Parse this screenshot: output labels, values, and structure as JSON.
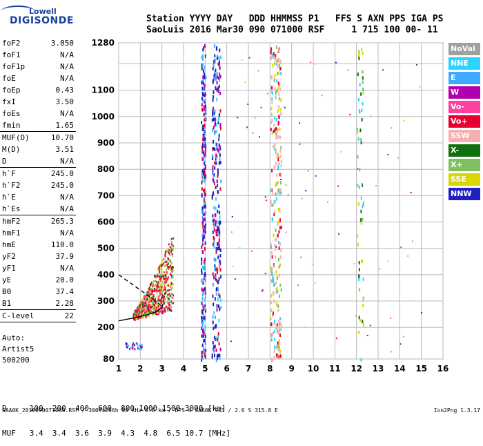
{
  "logo": {
    "line1": "Lowell",
    "line2": "DIGISONDE"
  },
  "header": {
    "row1": "Station YYYY DAY   DDD HHMMSS P1   FFS S AXN PPS IGA PS",
    "row2": "SaoLuis 2016 Mar30 090 071000 RSF     1 715 100 00- 11"
  },
  "params": [
    {
      "name": "foF2",
      "value": "3.050"
    },
    {
      "name": "foF1",
      "value": "N/A"
    },
    {
      "name": "foF1p",
      "value": "N/A"
    },
    {
      "name": "foE",
      "value": "N/A"
    },
    {
      "name": "foEp",
      "value": "0.43"
    },
    {
      "name": "fxI",
      "value": "3.50"
    },
    {
      "name": "foEs",
      "value": "N/A"
    },
    {
      "name": "fmin",
      "value": "1.65"
    },
    {
      "sep": true
    },
    {
      "name": "MUF(D)",
      "value": "10.70"
    },
    {
      "name": "M(D)",
      "value": "3.51"
    },
    {
      "name": "D",
      "value": "N/A"
    },
    {
      "sep": true
    },
    {
      "name": "h`F",
      "value": "245.0"
    },
    {
      "name": "h`F2",
      "value": "245.0"
    },
    {
      "name": "h`E",
      "value": "N/A"
    },
    {
      "name": "h`Es",
      "value": "N/A"
    },
    {
      "sep": true
    },
    {
      "name": "hmF2",
      "value": "265.3"
    },
    {
      "name": "hmF1",
      "value": "N/A"
    },
    {
      "name": "hmE",
      "value": "110.0"
    },
    {
      "name": "yF2",
      "value": "37.9"
    },
    {
      "name": "yF1",
      "value": "N/A"
    },
    {
      "name": "yE",
      "value": "20.0"
    },
    {
      "name": "B0",
      "value": "37.4"
    },
    {
      "name": "B1",
      "value": "2.28"
    },
    {
      "sep": true
    },
    {
      "name": "C-level",
      "value": "22"
    },
    {
      "sep": true
    }
  ],
  "auto": {
    "l1": "Auto:",
    "l2": "Artist5",
    "l3": "500200"
  },
  "bottom": {
    "d_row": "D     100  200  400  600  800 1000 1500 3000 [km]",
    "muf_row": "MUF   3.4  3.4  3.6  3.9  4.3  4.8  6.5 10.7 [MHz]"
  },
  "footer": {
    "left": "SAA0K_2016090071000.RSF / 300fx256h 50 kHz 5.0 km / DPS-4 SAA0K 903 / 2.6 S 315.8 E",
    "right": "Ion2Png 1.3.17"
  },
  "legend": [
    {
      "label": "NoVal",
      "color": "#a0a0a0"
    },
    {
      "label": "NNE",
      "color": "#2ad4ff"
    },
    {
      "label": "E",
      "color": "#40a8ff"
    },
    {
      "label": "W",
      "color": "#b000b0"
    },
    {
      "label": "Vo-",
      "color": "#ff40a0"
    },
    {
      "label": "Vo+",
      "color": "#e80030"
    },
    {
      "label": "SSW",
      "color": "#f4b0b0"
    },
    {
      "label": "X-",
      "color": "#107010"
    },
    {
      "label": "X+",
      "color": "#80c060"
    },
    {
      "label": "SSE",
      "color": "#d8d800"
    },
    {
      "label": "NNW",
      "color": "#2020c0"
    }
  ],
  "chart_data": {
    "type": "scatter",
    "xlabel": "",
    "ylabel": "",
    "xlim": [
      1,
      16
    ],
    "ylim": [
      80,
      1280
    ],
    "x_ticks": [
      "1",
      "2",
      "3",
      "4",
      "5",
      "6",
      "7",
      "8",
      "9",
      "10",
      "11",
      "12",
      "13",
      "14",
      "15",
      "16"
    ],
    "y_ticks": [
      "80",
      "200",
      "300",
      "400",
      "500",
      "600",
      "700",
      "800",
      "900",
      "1000",
      "1100",
      "1280"
    ],
    "grid": true,
    "traces": [
      {
        "name": "F2-trace-profile",
        "points": [
          [
            1.0,
            225
          ],
          [
            1.65,
            235
          ],
          [
            2.2,
            245
          ],
          [
            2.7,
            258
          ],
          [
            3.0,
            275
          ],
          [
            3.05,
            290
          ]
        ]
      },
      {
        "name": "profile-dashed",
        "points": [
          [
            1.0,
            400
          ],
          [
            1.6,
            365
          ],
          [
            2.2,
            330
          ],
          [
            2.7,
            300
          ],
          [
            3.0,
            280
          ]
        ]
      }
    ],
    "echo_bands": [
      {
        "x": [
          4.8,
          5.0
        ],
        "y": [
          80,
          1280
        ]
      },
      {
        "x": [
          5.3,
          5.7
        ],
        "y": [
          80,
          1280
        ]
      },
      {
        "x": [
          8.0,
          8.5
        ],
        "y": [
          80,
          1280
        ]
      },
      {
        "x": [
          12.0,
          12.3
        ],
        "y": [
          80,
          1280
        ]
      }
    ],
    "F2_echo_region": {
      "x": [
        1.65,
        3.5
      ],
      "y": [
        230,
        560
      ]
    }
  }
}
